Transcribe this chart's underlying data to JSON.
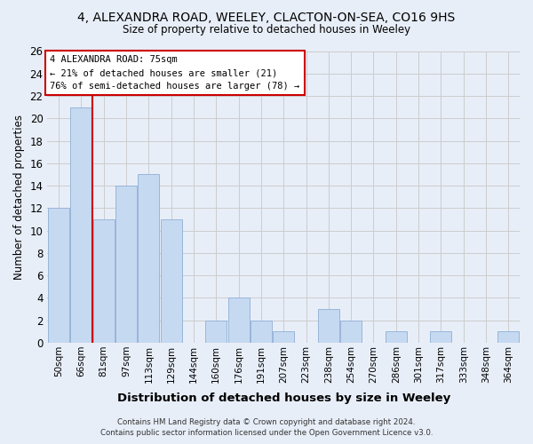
{
  "title": "4, ALEXANDRA ROAD, WEELEY, CLACTON-ON-SEA, CO16 9HS",
  "subtitle": "Size of property relative to detached houses in Weeley",
  "xlabel": "Distribution of detached houses by size in Weeley",
  "ylabel": "Number of detached properties",
  "categories": [
    "50sqm",
    "66sqm",
    "81sqm",
    "97sqm",
    "113sqm",
    "129sqm",
    "144sqm",
    "160sqm",
    "176sqm",
    "191sqm",
    "207sqm",
    "223sqm",
    "238sqm",
    "254sqm",
    "270sqm",
    "286sqm",
    "301sqm",
    "317sqm",
    "333sqm",
    "348sqm",
    "364sqm"
  ],
  "values": [
    12,
    21,
    11,
    14,
    15,
    11,
    0,
    2,
    4,
    2,
    1,
    0,
    3,
    2,
    0,
    1,
    0,
    1,
    0,
    0,
    1
  ],
  "bar_color": "#c5d9f1",
  "bar_edge_color": "#9ab5d9",
  "grid_color": "#cccccc",
  "annotation_text_line1": "4 ALEXANDRA ROAD: 75sqm",
  "annotation_text_line2": "← 21% of detached houses are smaller (21)",
  "annotation_text_line3": "76% of semi-detached houses are larger (78) →",
  "annotation_box_color": "#ffffff",
  "annotation_box_edge": "#cc0000",
  "red_line_color": "#cc0000",
  "ylim": [
    0,
    26
  ],
  "yticks": [
    0,
    2,
    4,
    6,
    8,
    10,
    12,
    14,
    16,
    18,
    20,
    22,
    24,
    26
  ],
  "footer_line1": "Contains HM Land Registry data © Crown copyright and database right 2024.",
  "footer_line2": "Contains public sector information licensed under the Open Government Licence v3.0.",
  "bg_color": "#e8eef8"
}
